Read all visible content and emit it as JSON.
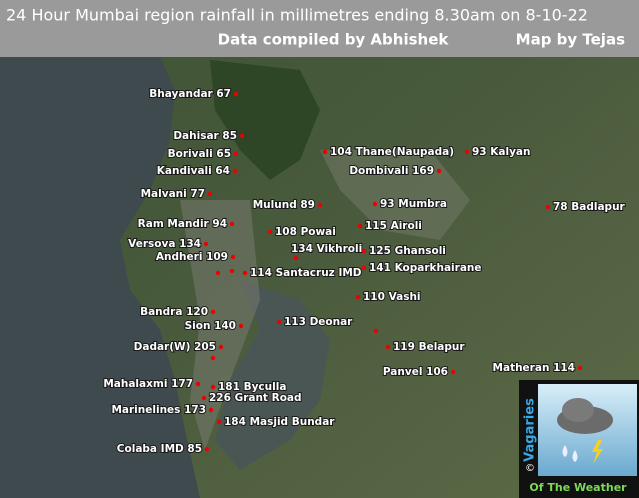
{
  "header": {
    "title": "24 Hour Mumbai region rainfall in millimetres ending 8.30am on 8-10-22",
    "compiled_by": "Data compiled by Abhishek",
    "map_by": "Map by Tejas"
  },
  "stations": [
    "Bhayandar 67",
    "Dahisar 85",
    "Borivali 65",
    "Kandivali 64",
    "Malvani 77",
    "104 Thane(Naupada)",
    "93 Kalyan",
    "Dombivali 169",
    "Mulund 89",
    "93 Mumbra",
    "78 Badlapur",
    "Ram Mandir 94",
    "108 Powai",
    "115 Airoli",
    "Versova 134",
    "134 Vikhroli",
    "125 Ghansoli",
    "Andheri 109",
    "114 Santacruz IMD",
    "141 Koparkhairane",
    "110 Vashi",
    "Bandra 120",
    "113 Deonar",
    "Sion 140",
    "Dadar(W) 205",
    "119 Belapur",
    "Panvel 106",
    "Matheran 114",
    "Mahalaxmi 177",
    "181 Byculla",
    "226 Grant Road",
    "Marinelines 173",
    "184 Masjid Bundar",
    "Colaba IMD 85"
  ],
  "logo": {
    "brand": "Vagaries",
    "copyright": "©",
    "tagline": "Of The Weather"
  }
}
